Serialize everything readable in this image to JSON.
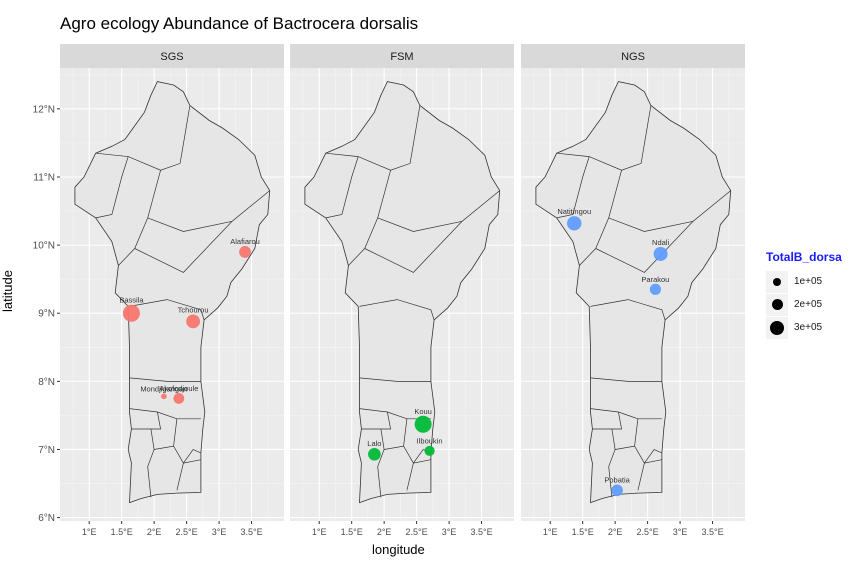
{
  "title": "Agro ecology Abundance of Bactrocera dorsalis",
  "chart_data": {
    "type": "scatter",
    "title": "Agro ecology Abundance of Bactrocera dorsalis",
    "xlabel": "longitude",
    "ylabel": "latitude",
    "xlim": [
      0.55,
      4.0
    ],
    "ylim": [
      5.95,
      12.6
    ],
    "x_ticks": [
      1,
      1.5,
      2,
      2.5,
      3,
      3.5
    ],
    "x_tick_labels": [
      "1°E",
      "1.5°E",
      "2°E",
      "2.5°E",
      "3°E",
      "3.5°E"
    ],
    "y_ticks": [
      6,
      7,
      8,
      9,
      10,
      11,
      12
    ],
    "y_tick_labels": [
      "6°N",
      "7°N",
      "8°N",
      "9°N",
      "10°N",
      "11°N",
      "12°N"
    ],
    "grid": true,
    "legend": {
      "title": "TotalB_dorsa",
      "placement": "right",
      "entries": [
        {
          "label": "1e+05",
          "value": 100000
        },
        {
          "label": "2e+05",
          "value": 200000
        },
        {
          "label": "3e+05",
          "value": 300000
        }
      ]
    },
    "panels": [
      {
        "name": "SGS",
        "color": "#F8766D",
        "points": [
          {
            "label": "Alafiarou",
            "lon": 3.4,
            "lat": 9.9,
            "abundance": 110000
          },
          {
            "label": "Bassila",
            "lon": 1.65,
            "lat": 9.0,
            "abundance": 300000
          },
          {
            "label": "Tchourou",
            "lon": 2.6,
            "lat": 8.88,
            "abundance": 170000
          },
          {
            "label": "Mondjigangan",
            "lon": 2.15,
            "lat": 7.78,
            "abundance": 5000
          },
          {
            "label": "Akofodjoule",
            "lon": 2.38,
            "lat": 7.75,
            "abundance": 80000
          }
        ]
      },
      {
        "name": "FSM",
        "color": "#00BA38",
        "points": [
          {
            "label": "Kouu",
            "lon": 2.6,
            "lat": 7.37,
            "abundance": 300000
          },
          {
            "label": "Lalo",
            "lon": 1.85,
            "lat": 6.93,
            "abundance": 130000
          },
          {
            "label": "Ilboukin",
            "lon": 2.7,
            "lat": 6.98,
            "abundance": 70000
          }
        ]
      },
      {
        "name": "NGS",
        "color": "#619CFF",
        "points": [
          {
            "label": "Natitingou",
            "lon": 1.37,
            "lat": 10.32,
            "abundance": 190000
          },
          {
            "label": "Ndali",
            "lon": 2.7,
            "lat": 9.87,
            "abundance": 180000
          },
          {
            "label": "Parakou",
            "lon": 2.62,
            "lat": 9.35,
            "abundance": 90000
          },
          {
            "label": "Pobatia",
            "lon": 2.03,
            "lat": 6.4,
            "abundance": 100000
          }
        ]
      }
    ]
  }
}
